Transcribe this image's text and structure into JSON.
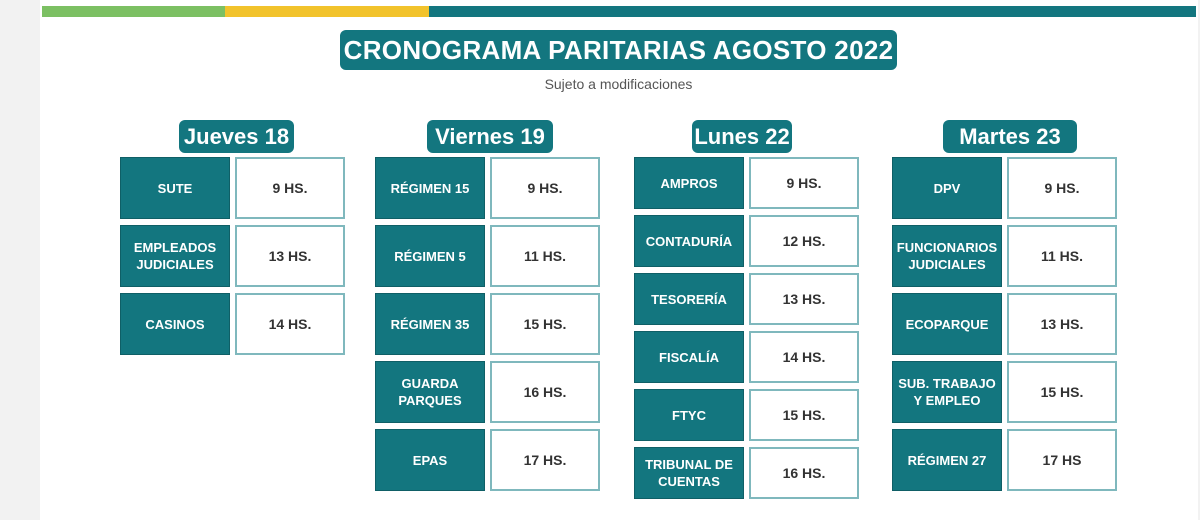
{
  "header": {
    "title": "CRONOGRAMA PARITARIAS AGOSTO 2022",
    "subtitle": "Sujeto a modificaciones"
  },
  "colors": {
    "teal": "#13767f",
    "green": "#7cc063",
    "yellow": "#f2c32c",
    "time_border": "#7fb8bd"
  },
  "days": [
    {
      "label": "Jueves 18",
      "entries": [
        {
          "name": "SUTE",
          "time": "9 HS."
        },
        {
          "name": "EMPLEADOS\nJUDICIALES",
          "time": "13 HS."
        },
        {
          "name": "CASINOS",
          "time": "14 HS."
        }
      ]
    },
    {
      "label": "Viernes 19",
      "entries": [
        {
          "name": "RÉGIMEN 15",
          "time": "9 HS."
        },
        {
          "name": "RÉGIMEN 5",
          "time": "11 HS."
        },
        {
          "name": "RÉGIMEN 35",
          "time": "15 HS."
        },
        {
          "name": "GUARDA\nPARQUES",
          "time": "16 HS."
        },
        {
          "name": "EPAS",
          "time": "17 HS."
        }
      ]
    },
    {
      "label": "Lunes 22",
      "entries": [
        {
          "name": "AMPROS",
          "time": "9 HS."
        },
        {
          "name": "CONTADURÍA",
          "time": "12 HS."
        },
        {
          "name": "TESORERÍA",
          "time": "13 HS."
        },
        {
          "name": "FISCALÍA",
          "time": "14 HS."
        },
        {
          "name": "FTYC",
          "time": "15 HS."
        },
        {
          "name": "TRIBUNAL DE\nCUENTAS",
          "time": "16 HS."
        }
      ]
    },
    {
      "label": "Martes 23",
      "entries": [
        {
          "name": "DPV",
          "time": "9 HS."
        },
        {
          "name": "FUNCIONARIOS\nJUDICIALES",
          "time": "11 HS."
        },
        {
          "name": "ECOPARQUE",
          "time": "13 HS."
        },
        {
          "name": "SUB. TRABAJO\nY EMPLEO",
          "time": "15 HS."
        },
        {
          "name": "RÉGIMEN  27",
          "time": "17 HS"
        }
      ]
    }
  ]
}
